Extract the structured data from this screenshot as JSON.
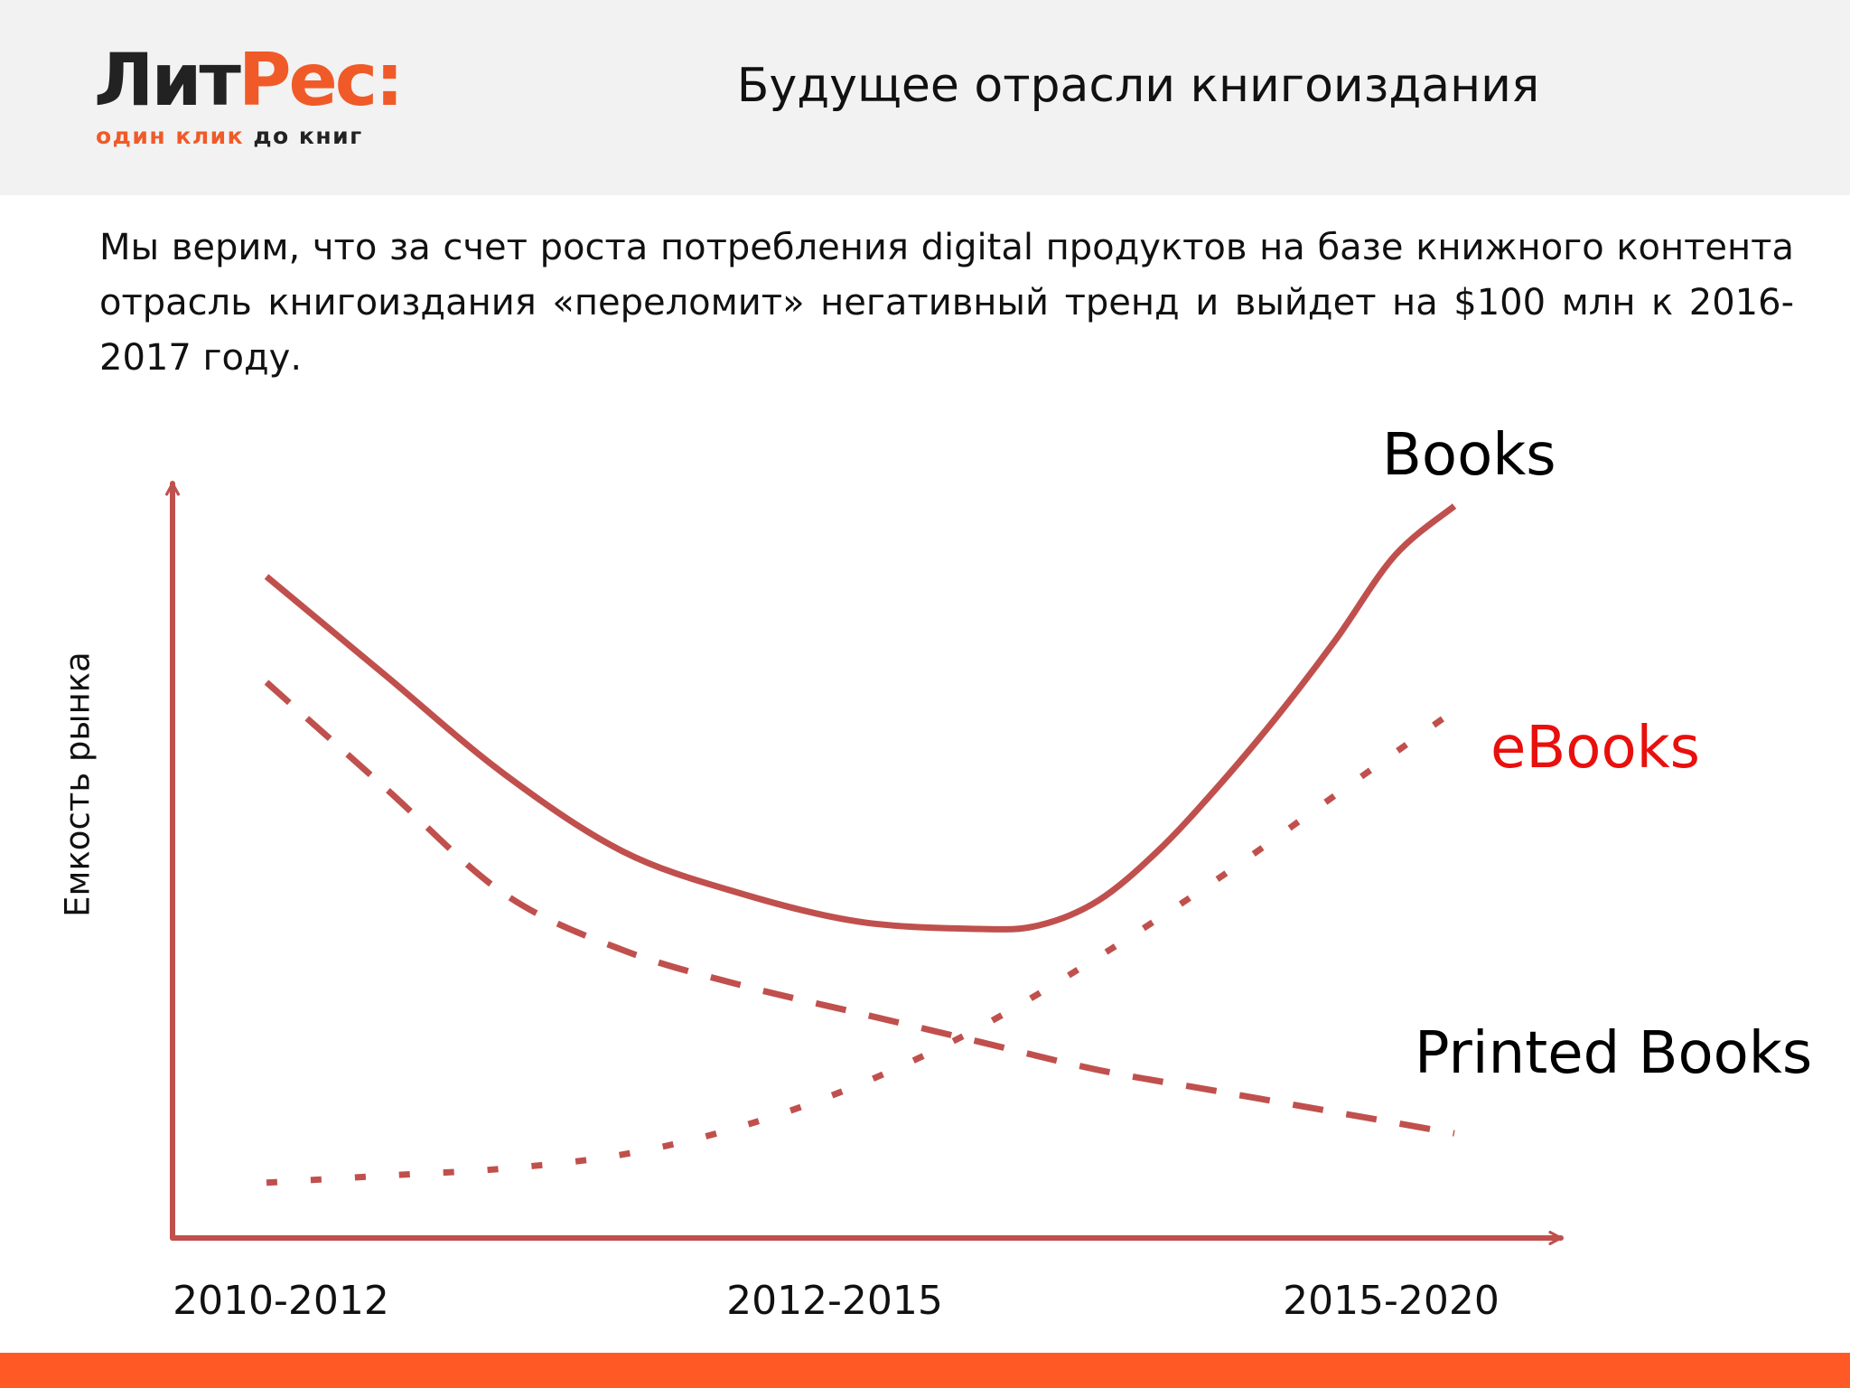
{
  "brand": {
    "name_dark": "Лит",
    "name_accent": "Рес:",
    "tagline_accent": "один клик",
    "tagline_dark": "до книг",
    "accent_color": "#f05a28",
    "dark_color": "#222222"
  },
  "slide": {
    "title": "Будущее отрасли книгоиздания",
    "intro": "Мы верим, что за счет роста потребления digital продуктов на базе книжного контента отрасль книгоиздания «переломит» негативный тренд и выйдет на $100 млн к 2016-2017 году.",
    "footer_color": "#ff5a26"
  },
  "chart_data": {
    "type": "line",
    "title": "",
    "xlabel": "",
    "ylabel": "Емкость рынка",
    "categories": [
      "2010-2012",
      "2012-2015",
      "2015-2020"
    ],
    "axis_color": "#c0504d",
    "grid": false,
    "xlim": [
      0,
      10
    ],
    "ylim": [
      0,
      10
    ],
    "series": [
      {
        "name": "Books",
        "label_color": "#000000",
        "line_color": "#c0504d",
        "style": "solid",
        "x": [
          0,
          1,
          2,
          3,
          4,
          5,
          6,
          6.5,
          7,
          7.5,
          8,
          8.5,
          9,
          9.5,
          10
        ],
        "y": [
          9.0,
          7.6,
          6.2,
          5.1,
          4.5,
          4.1,
          4.0,
          4.05,
          4.4,
          5.1,
          6.0,
          7.0,
          8.1,
          9.3,
          10.0
        ]
      },
      {
        "name": "eBooks",
        "label_color": "#e8100d",
        "line_color": "#c0504d",
        "style": "dotted",
        "x": [
          0,
          1,
          2,
          3,
          4,
          5,
          6,
          7,
          8,
          9,
          10
        ],
        "y": [
          0.4,
          0.5,
          0.6,
          0.8,
          1.2,
          1.8,
          2.6,
          3.6,
          4.7,
          5.9,
          7.1
        ]
      },
      {
        "name": "Printed Books",
        "label_color": "#000000",
        "line_color": "#c0504d",
        "style": "dashed",
        "x": [
          0,
          1,
          2,
          3,
          4,
          5,
          6,
          7,
          8,
          9,
          10
        ],
        "y": [
          7.5,
          6.0,
          4.5,
          3.7,
          3.2,
          2.8,
          2.4,
          2.0,
          1.7,
          1.4,
          1.1
        ]
      }
    ]
  }
}
